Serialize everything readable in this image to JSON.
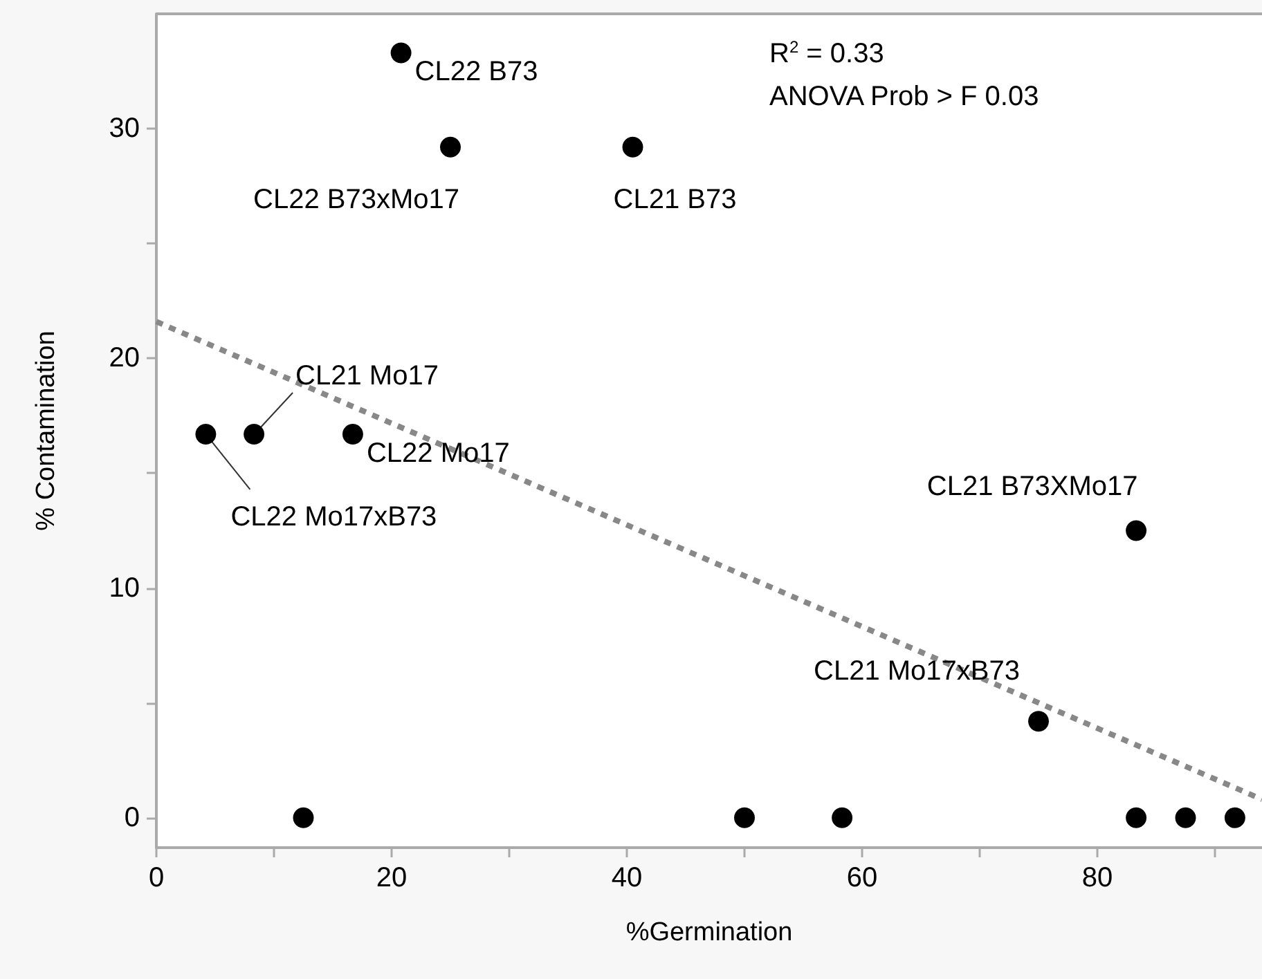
{
  "chart_data": {
    "type": "scatter",
    "xlabel": "%Germination",
    "ylabel": "% Contamination",
    "xlim": [
      0,
      94
    ],
    "ylim": [
      -1.3,
      35
    ],
    "xticks": [
      0,
      {
        "value": 10,
        "label": null
      },
      20,
      {
        "value": 30,
        "label": null
      },
      40,
      {
        "value": 50,
        "label": null
      },
      60,
      {
        "value": 70,
        "label": null
      },
      80,
      {
        "value": 90,
        "label": null
      }
    ],
    "yticks": [
      0,
      {
        "value": 5,
        "label": null
      },
      10,
      {
        "value": 15,
        "label": null
      },
      20,
      {
        "value": 25,
        "label": null
      },
      30
    ],
    "grid": false,
    "marker": "circle",
    "series": [
      {
        "color": "#000000",
        "x": [
          20.8,
          25,
          40.5,
          8.3,
          16.7,
          4.2,
          83.3,
          75,
          12.5,
          50,
          58.3,
          83.3,
          87.5,
          91.7
        ],
        "values": [
          33.3,
          29.2,
          29.2,
          16.7,
          16.7,
          16.7,
          12.5,
          4.2,
          0,
          0,
          0,
          0,
          0,
          0
        ]
      },
      {
        "type": "line",
        "color": "#888888",
        "line_style": "dotted",
        "marker": "none",
        "x": [
          0,
          94
        ],
        "values": [
          21.6,
          0.8
        ]
      }
    ],
    "annotations": [
      {
        "text": "CL22 B73",
        "x": 20.8,
        "y": 33.3
      },
      {
        "text": "CL22 B73xMo17",
        "x": 25,
        "y": 29.2
      },
      {
        "text": "CL21 B73",
        "x": 40.5,
        "y": 29.2
      },
      {
        "text": "CL21 Mo17",
        "x": 8.3,
        "y": 16.7
      },
      {
        "text": "CL22 Mo17",
        "x": 16.7,
        "y": 16.7
      },
      {
        "text": "CL22 Mo17xB73",
        "x": 4.2,
        "y": 16.7
      },
      {
        "text": "CL21 B73XMo17",
        "x": 83.3,
        "y": 12.5
      },
      {
        "text": "CL21 Mo17xB73",
        "x": 75,
        "y": 4.2
      },
      "R$^{2}$ = 0.33",
      "ANOVA Prob > F 0.03"
    ]
  }
}
